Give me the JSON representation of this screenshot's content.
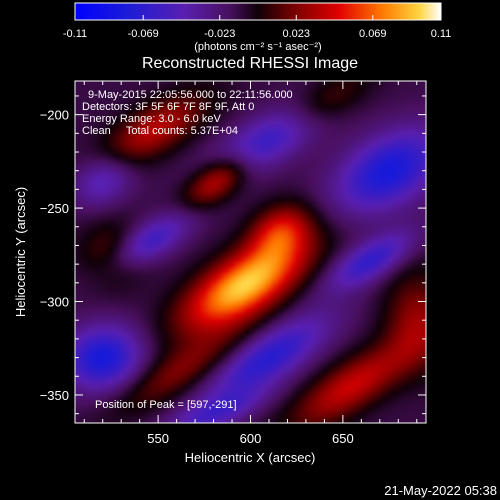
{
  "chart_data": {
    "type": "heatmap",
    "title": "Reconstructed RHESSI Image",
    "xlabel": "Heliocentric X (arcsec)",
    "ylabel": "Heliocentric Y (arcsec)",
    "xlim": [
      505,
      695
    ],
    "ylim": [
      -365,
      -182
    ],
    "xticks": [
      550,
      600,
      650
    ],
    "yticks": [
      -200,
      -250,
      -300,
      -350
    ],
    "colorbar": {
      "min": -0.11,
      "max": 0.11,
      "ticks": [
        "-0.11",
        "-0.069",
        "-0.023",
        "0.023",
        "0.069",
        "0.11"
      ],
      "units": "(photons cm⁻² s⁻¹ asec⁻²)"
    },
    "annotations": [
      "9-May-2015 22:05:56.000 to 22:11:56.000",
      "Detectors: 3F 5F 6F 7F 8F 9F, Att 0",
      "Energy Range: 3.0 - 6.0 keV",
      "Clean     Total counts: 5.37E+04"
    ],
    "peak_label": "Position of Peak = [597,-291]",
    "peak": {
      "x": 597,
      "y": -291,
      "value": 0.11
    },
    "sources": [
      {
        "x": 597,
        "y": -291,
        "value": 0.11,
        "sx": 26,
        "sy": 11,
        "angle_deg": 32
      },
      {
        "x": 616,
        "y": -262,
        "value": 0.055,
        "sx": 12,
        "sy": 9,
        "angle_deg": 32
      },
      {
        "x": 582,
        "y": -235,
        "value": 0.062,
        "sx": 14,
        "sy": 7,
        "angle_deg": 35
      },
      {
        "x": 548,
        "y": -208,
        "value": 0.05,
        "sx": 22,
        "sy": 9,
        "angle_deg": 30
      },
      {
        "x": 638,
        "y": -195,
        "value": 0.04,
        "sx": 20,
        "sy": 8,
        "angle_deg": 30
      },
      {
        "x": 525,
        "y": -275,
        "value": 0.03,
        "sx": 12,
        "sy": 12,
        "angle_deg": 0
      },
      {
        "x": 560,
        "y": -338,
        "value": 0.035,
        "sx": 26,
        "sy": 8,
        "angle_deg": 30
      },
      {
        "x": 655,
        "y": -345,
        "value": 0.055,
        "sx": 26,
        "sy": 9,
        "angle_deg": 32
      },
      {
        "x": 690,
        "y": -310,
        "value": 0.04,
        "sx": 12,
        "sy": 18,
        "angle_deg": 0
      },
      {
        "x": 612,
        "y": -212,
        "value": -0.06,
        "sx": 26,
        "sy": 9,
        "angle_deg": 30
      },
      {
        "x": 675,
        "y": -230,
        "value": -0.07,
        "sx": 22,
        "sy": 13,
        "angle_deg": 30
      },
      {
        "x": 610,
        "y": -330,
        "value": -0.06,
        "sx": 26,
        "sy": 9,
        "angle_deg": 32
      },
      {
        "x": 520,
        "y": -330,
        "value": -0.07,
        "sx": 15,
        "sy": 12,
        "angle_deg": 10
      },
      {
        "x": 545,
        "y": -268,
        "value": -0.05,
        "sx": 18,
        "sy": 7,
        "angle_deg": 30
      },
      {
        "x": 665,
        "y": -278,
        "value": -0.055,
        "sx": 18,
        "sy": 7,
        "angle_deg": 30
      },
      {
        "x": 520,
        "y": -235,
        "value": -0.04,
        "sx": 12,
        "sy": 9,
        "angle_deg": 30
      },
      {
        "x": 580,
        "y": -360,
        "value": -0.04,
        "sx": 20,
        "sy": 6,
        "angle_deg": 20
      }
    ],
    "grid": false,
    "legend": "top"
  },
  "footer": {
    "timestamp": "21-May-2022 05:38"
  }
}
